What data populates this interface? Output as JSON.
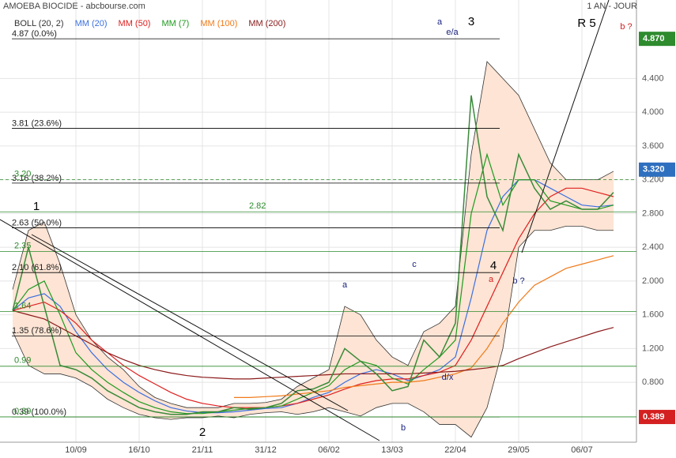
{
  "chart_data": {
    "type": "line",
    "title": "AMOEBA BIOCIDE - abcbourse.com",
    "period": "1 AN - JOUR",
    "categories": [
      null,
      null,
      null,
      null,
      "10/09",
      null,
      null,
      null,
      "16/10",
      null,
      null,
      null,
      "21/11",
      null,
      null,
      null,
      "31/12",
      null,
      null,
      null,
      "06/02",
      null,
      null,
      null,
      "13/03",
      null,
      null,
      null,
      "22/04",
      null,
      null,
      null,
      "29/05",
      null,
      null,
      null,
      "06/07",
      null,
      null
    ],
    "price": {
      "color": "#3a8a3a",
      "values": [
        1.65,
        2.4,
        1.7,
        1.0,
        0.95,
        0.85,
        0.7,
        0.6,
        0.5,
        0.45,
        0.42,
        0.42,
        0.45,
        0.45,
        0.5,
        0.48,
        0.5,
        0.55,
        0.7,
        0.72,
        0.8,
        1.2,
        1.05,
        0.9,
        0.7,
        0.75,
        1.3,
        1.1,
        1.5,
        4.2,
        3.0,
        2.6,
        3.5,
        3.1,
        2.85,
        2.95,
        2.85,
        2.85,
        3.05
      ]
    },
    "series": [
      {
        "name": "BOLL (20, 2)",
        "color": "#333333",
        "fill": "#fde4d4",
        "upper": [
          1.9,
          2.6,
          2.7,
          2.2,
          1.6,
          1.3,
          1.1,
          0.95,
          0.75,
          0.62,
          0.55,
          0.5,
          0.5,
          0.5,
          0.55,
          0.55,
          0.56,
          0.6,
          0.75,
          0.85,
          0.95,
          1.7,
          1.6,
          1.3,
          1.1,
          1.0,
          1.4,
          1.5,
          1.7,
          3.5,
          4.6,
          4.4,
          4.2,
          3.8,
          3.4,
          3.2,
          3.2,
          3.2,
          3.3
        ],
        "lower": [
          1.4,
          1.0,
          0.9,
          0.9,
          0.85,
          0.75,
          0.6,
          0.5,
          0.42,
          0.38,
          0.36,
          0.38,
          0.38,
          0.4,
          0.38,
          0.42,
          0.44,
          0.45,
          0.42,
          0.45,
          0.5,
          0.45,
          0.4,
          0.5,
          0.55,
          0.55,
          0.45,
          0.3,
          0.3,
          0.15,
          0.5,
          1.2,
          2.4,
          2.6,
          2.6,
          2.65,
          2.65,
          2.6,
          2.6
        ]
      },
      {
        "name": "MM (20)",
        "color": "#3b6fe0",
        "values": [
          1.65,
          1.8,
          1.85,
          1.7,
          1.4,
          1.15,
          0.95,
          0.8,
          0.68,
          0.58,
          0.5,
          0.46,
          0.44,
          0.44,
          0.45,
          0.47,
          0.49,
          0.5,
          0.55,
          0.62,
          0.68,
          0.8,
          0.9,
          0.95,
          0.9,
          0.82,
          0.88,
          0.95,
          1.1,
          1.8,
          2.6,
          3.0,
          3.2,
          3.2,
          3.1,
          3.0,
          2.9,
          2.88,
          2.9
        ]
      },
      {
        "name": "MM (50)",
        "color": "#e02020",
        "values": [
          1.65,
          1.7,
          1.75,
          1.65,
          1.5,
          1.3,
          1.15,
          1.0,
          0.88,
          0.78,
          0.68,
          0.6,
          0.55,
          0.52,
          0.5,
          0.5,
          0.5,
          0.52,
          0.55,
          0.6,
          0.65,
          0.72,
          0.78,
          0.82,
          0.84,
          0.84,
          0.88,
          0.92,
          1.0,
          1.3,
          1.7,
          2.1,
          2.5,
          2.8,
          3.0,
          3.1,
          3.1,
          3.05,
          3.0
        ]
      },
      {
        "name": "MM (7)",
        "color": "#1f9a1f",
        "values": [
          1.65,
          1.9,
          2.0,
          1.6,
          1.15,
          0.95,
          0.8,
          0.68,
          0.57,
          0.5,
          0.45,
          0.43,
          0.43,
          0.45,
          0.47,
          0.49,
          0.5,
          0.52,
          0.6,
          0.68,
          0.76,
          0.95,
          1.05,
          1.0,
          0.85,
          0.78,
          0.95,
          1.1,
          1.3,
          2.8,
          3.5,
          2.9,
          3.2,
          3.2,
          2.95,
          2.9,
          2.85,
          2.85,
          2.9
        ]
      },
      {
        "name": "MM (100)",
        "color": "#f07a1a",
        "values": [
          null,
          null,
          null,
          null,
          null,
          null,
          null,
          null,
          null,
          null,
          null,
          null,
          null,
          null,
          0.62,
          0.62,
          0.63,
          0.64,
          0.66,
          0.68,
          0.7,
          0.74,
          0.76,
          0.78,
          0.8,
          0.8,
          0.82,
          0.86,
          0.9,
          0.97,
          1.2,
          1.5,
          1.75,
          1.95,
          2.05,
          2.15,
          2.2,
          2.25,
          2.3
        ]
      },
      {
        "name": "MM (200)",
        "color": "#8b1a1a",
        "values": [
          1.65,
          1.6,
          1.55,
          1.45,
          1.35,
          1.25,
          1.15,
          1.07,
          1.0,
          0.95,
          0.91,
          0.88,
          0.86,
          0.85,
          0.84,
          0.84,
          0.85,
          0.86,
          0.87,
          0.88,
          0.89,
          0.9,
          0.9,
          0.9,
          0.9,
          0.9,
          0.91,
          0.92,
          0.93,
          0.95,
          0.97,
          1.0,
          1.08,
          1.15,
          1.22,
          1.28,
          1.34,
          1.4,
          1.45
        ]
      }
    ],
    "ylim": [
      0.09,
      5.33
    ],
    "yticks": [
      {
        "value": 0.8,
        "label": "0.800"
      },
      {
        "value": 1.2,
        "label": "1.200"
      },
      {
        "value": 1.6,
        "label": "1.600"
      },
      {
        "value": 2.0,
        "label": "2.000"
      },
      {
        "value": 2.4,
        "label": "2.400"
      },
      {
        "value": 2.8,
        "label": "2.800"
      },
      {
        "value": 3.2,
        "label": "3.200"
      },
      {
        "value": 3.6,
        "label": "3.600"
      },
      {
        "value": 4.0,
        "label": "4.000"
      },
      {
        "value": 4.4,
        "label": "4.400"
      }
    ],
    "grid": true,
    "fibonacci_levels": {
      "color": "#000000",
      "levels": [
        {
          "value": 4.87,
          "label": "4.87  (0.0%)"
        },
        {
          "value": 3.81,
          "label": "3.81  (23.6%)"
        },
        {
          "value": 3.16,
          "label": "3.16  (38.2%)"
        },
        {
          "value": 2.63,
          "label": "2.63  (50.0%)"
        },
        {
          "value": 2.1,
          "label": "2.10  (61.8%)"
        },
        {
          "value": 1.35,
          "label": "1.35  (78.6%)"
        },
        {
          "value": 0.39,
          "label": "0.39  (100.0%)"
        }
      ]
    },
    "support_levels": {
      "color": "#2a8a2a",
      "levels": [
        {
          "value": 3.2,
          "label": "3.20"
        },
        {
          "value": 2.82,
          "label": "2.82"
        },
        {
          "value": 2.35,
          "label": "2.35"
        },
        {
          "value": 1.64,
          "label": "1.64"
        },
        {
          "value": 0.99,
          "label": "0.99"
        },
        {
          "value": 0.39,
          "label": "0.39"
        }
      ]
    },
    "badges": [
      {
        "value": 4.87,
        "label": "4.870",
        "color": "#2e8b2e"
      },
      {
        "value": 3.32,
        "label": "3.320",
        "color": "#2f6fbf"
      },
      {
        "value": 0.389,
        "label": "0.389",
        "color": "#d42020"
      }
    ],
    "annotations": [
      "1",
      "2",
      "3",
      "4",
      "R 5",
      "a",
      "e/a",
      "a",
      "c",
      "b",
      "a",
      "b ?",
      "d/x",
      "b ?"
    ]
  }
}
